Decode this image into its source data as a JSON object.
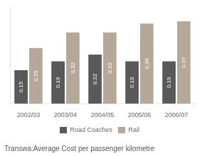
{
  "chart_data": {
    "type": "bar",
    "title": "Transwa:Average Cost per passenger kilometre",
    "categories": [
      "2002/03",
      "2003/04",
      "2004/05",
      "2005/06",
      "2006/07"
    ],
    "series": [
      {
        "name": "Road Coaches",
        "color": "#595959",
        "values": [
          0.15,
          0.19,
          0.22,
          0.19,
          0.19
        ]
      },
      {
        "name": "Rail",
        "color": "#b5a898",
        "values": [
          0.25,
          0.32,
          0.32,
          0.36,
          0.37
        ]
      }
    ],
    "ylim": [
      0,
      0.44
    ],
    "yticks": [],
    "tick_labels": "x",
    "grid": false,
    "legend": "bottom",
    "data_labels": true
  }
}
